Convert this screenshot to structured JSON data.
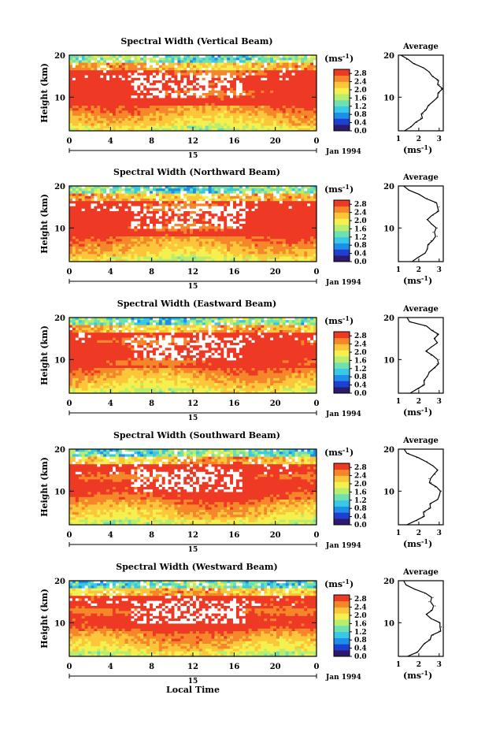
{
  "figure": {
    "x_axis_label": "Local Time",
    "y_axis_label": "Height (km)",
    "date_label": "Jan 1994",
    "day_label": "15",
    "colorbar_unit": "(ms",
    "colorbar_unit_exp": "-1",
    "colorbar_unit_close": ")",
    "profile_title": "Average",
    "profile_xlabel": "(ms",
    "profile_xlabel_exp": "-1",
    "profile_xlabel_close": ")"
  },
  "colorbar": {
    "ticks": [
      "0.0",
      "0.4",
      "0.8",
      "1.2",
      "1.6",
      "2.0",
      "2.4",
      "2.8"
    ],
    "colors": [
      "#2b1a6e",
      "#1f3fd0",
      "#1e8fe8",
      "#38c8e8",
      "#6fe0b0",
      "#b8ee70",
      "#f4f050",
      "#fbc63a",
      "#f6862a",
      "#ee3a24"
    ],
    "range": [
      0,
      3.0
    ]
  },
  "chart_data": [
    {
      "type": "heatmap",
      "title": "Spectral Width (Vertical Beam)",
      "x_ticks": [
        "0",
        "4",
        "8",
        "12",
        "16",
        "20",
        "0"
      ],
      "x_range": [
        0,
        24
      ],
      "y_ticks": [
        "20",
        "10"
      ],
      "y_range": [
        2,
        20
      ],
      "profile": {
        "title": "Average",
        "x_ticks": [
          "1",
          "2",
          "3"
        ],
        "x_range": [
          1,
          3.2
        ],
        "y_ticks": [
          "20",
          "10"
        ],
        "height": [
          2,
          3,
          4,
          5,
          6,
          7,
          8,
          9,
          10,
          11,
          12,
          13,
          14,
          15,
          16,
          17,
          18,
          19,
          20
        ],
        "width": [
          1.3,
          1.6,
          1.9,
          2.1,
          2.2,
          2.3,
          2.5,
          2.7,
          2.9,
          3.0,
          3.1,
          3.0,
          2.9,
          2.7,
          2.5,
          2.2,
          1.8,
          1.4,
          1.2
        ]
      }
    },
    {
      "type": "heatmap",
      "title": "Spectral Width (Northward Beam)",
      "x_ticks": [
        "0",
        "4",
        "8",
        "12",
        "16",
        "20",
        "0"
      ],
      "x_range": [
        0,
        24
      ],
      "y_ticks": [
        "20",
        "10"
      ],
      "y_range": [
        2,
        20
      ],
      "profile": {
        "title": "Average",
        "x_ticks": [
          "1",
          "2",
          "3"
        ],
        "x_range": [
          1,
          3.2
        ],
        "y_ticks": [
          "20",
          "10"
        ],
        "height": [
          2,
          3,
          4,
          5,
          6,
          7,
          8,
          9,
          10,
          11,
          12,
          13,
          14,
          15,
          16,
          17,
          18,
          19,
          20
        ],
        "width": [
          1.6,
          2.0,
          2.3,
          2.4,
          2.5,
          2.6,
          2.9,
          2.7,
          2.9,
          2.6,
          2.4,
          2.7,
          2.9,
          3.0,
          2.8,
          2.4,
          2.0,
          1.5,
          1.3
        ]
      }
    },
    {
      "type": "heatmap",
      "title": "Spectral Width (Eastward Beam)",
      "x_ticks": [
        "0",
        "4",
        "8",
        "12",
        "16",
        "20",
        "0"
      ],
      "x_range": [
        0,
        24
      ],
      "y_ticks": [
        "20",
        "10"
      ],
      "y_range": [
        2,
        20
      ],
      "profile": {
        "title": "Average",
        "x_ticks": [
          "1",
          "2",
          "3"
        ],
        "x_range": [
          1,
          3.2
        ],
        "y_ticks": [
          "20",
          "10"
        ],
        "height": [
          2,
          3,
          4,
          5,
          6,
          7,
          8,
          9,
          10,
          11,
          12,
          13,
          14,
          15,
          16,
          17,
          18,
          19,
          20
        ],
        "width": [
          1.5,
          2.0,
          2.2,
          2.3,
          2.4,
          2.5,
          2.8,
          2.9,
          3.0,
          2.6,
          2.4,
          2.6,
          2.9,
          2.8,
          2.9,
          2.7,
          2.3,
          1.6,
          1.4
        ]
      }
    },
    {
      "type": "heatmap",
      "title": "Spectral Width (Southward Beam)",
      "x_ticks": [
        "0",
        "4",
        "8",
        "12",
        "16",
        "20",
        "0"
      ],
      "x_range": [
        0,
        24
      ],
      "y_ticks": [
        "20",
        "10"
      ],
      "y_range": [
        2,
        20
      ],
      "profile": {
        "title": "Average",
        "x_ticks": [
          "1",
          "2",
          "3"
        ],
        "x_range": [
          1,
          3.2
        ],
        "y_ticks": [
          "20",
          "10"
        ],
        "height": [
          2,
          3,
          4,
          5,
          6,
          7,
          8,
          9,
          10,
          11,
          12,
          13,
          14,
          15,
          16,
          17,
          18,
          19,
          20
        ],
        "width": [
          1.4,
          1.9,
          2.2,
          2.3,
          2.5,
          2.6,
          2.9,
          3.0,
          3.1,
          2.8,
          2.6,
          2.5,
          2.8,
          2.9,
          2.7,
          2.4,
          1.9,
          1.5,
          1.2
        ]
      }
    },
    {
      "type": "heatmap",
      "title": "Spectral Width (Westward Beam)",
      "x_ticks": [
        "0",
        "4",
        "8",
        "12",
        "16",
        "20",
        "0"
      ],
      "x_range": [
        0,
        24
      ],
      "y_ticks": [
        "20",
        "10"
      ],
      "y_range": [
        2,
        20
      ],
      "profile": {
        "title": "Average",
        "x_ticks": [
          "1",
          "2",
          "3"
        ],
        "x_range": [
          1,
          3.2
        ],
        "y_ticks": [
          "20",
          "10"
        ],
        "height": [
          2,
          3,
          4,
          5,
          6,
          7,
          8,
          9,
          10,
          11,
          12,
          13,
          14,
          15,
          16,
          17,
          18,
          19,
          20
        ],
        "width": [
          1.5,
          1.9,
          2.1,
          2.3,
          2.5,
          2.7,
          3.0,
          3.1,
          3.0,
          2.6,
          2.4,
          2.6,
          2.8,
          2.5,
          2.7,
          2.3,
          1.8,
          1.4,
          1.2
        ]
      }
    }
  ]
}
